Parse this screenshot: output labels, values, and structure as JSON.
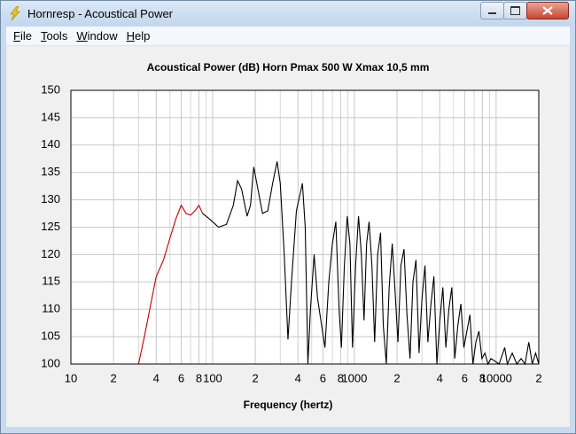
{
  "window": {
    "title": "Hornresp - Acoustical Power"
  },
  "menu": [
    "File",
    "Tools",
    "Window",
    "Help"
  ],
  "chart_data": {
    "type": "line",
    "title": "Acoustical Power (dB)   Horn   Pmax 500 W   Xmax 10,5 mm",
    "x_label": "Frequency (hertz)",
    "xscale": "log",
    "grid": true,
    "xlim": [
      10,
      20000
    ],
    "ylim": [
      100,
      150
    ],
    "yticks": [
      100,
      105,
      110,
      115,
      120,
      125,
      130,
      135,
      140,
      145,
      150
    ],
    "xticks": [
      10,
      {
        "value": 20,
        "label": "2"
      },
      {
        "value": 40,
        "label": "4"
      },
      {
        "value": 60,
        "label": "6"
      },
      {
        "value": 80,
        "label": "8"
      },
      100,
      {
        "value": 200,
        "label": "2"
      },
      {
        "value": 400,
        "label": "4"
      },
      {
        "value": 600,
        "label": "6"
      },
      {
        "value": 800,
        "label": "8"
      },
      1000,
      {
        "value": 2000,
        "label": "2"
      },
      {
        "value": 4000,
        "label": "4"
      },
      {
        "value": 6000,
        "label": "6"
      },
      {
        "value": 8000,
        "label": "8"
      },
      10000,
      {
        "value": 20000,
        "label": "2"
      }
    ],
    "x_minor_grid": [
      30,
      50,
      70,
      90,
      300,
      500,
      700,
      900,
      3000,
      5000,
      7000,
      9000
    ],
    "series": [
      {
        "color": "#c00000",
        "x": [
          30,
          33,
          36,
          40,
          45,
          50,
          55,
          60,
          65,
          70,
          75,
          80,
          85
        ],
        "values": [
          100,
          105,
          110,
          116,
          119,
          123,
          126.5,
          129,
          127.5,
          127.2,
          128,
          129,
          127.5
        ]
      },
      {
        "color": "#000000",
        "x": [
          85,
          95,
          110,
          125,
          140,
          150,
          160,
          175,
          185,
          195,
          205,
          225,
          245,
          265,
          285,
          300,
          320,
          340,
          360,
          390,
          430,
          450,
          470,
          490,
          520,
          550,
          580,
          620,
          660,
          700,
          740,
          780,
          810,
          850,
          890,
          930,
          970,
          1020,
          1070,
          1120,
          1170,
          1220,
          1270,
          1330,
          1390,
          1460,
          1530,
          1600,
          1680,
          1760,
          1850,
          1940,
          2030,
          2130,
          2240,
          2350,
          2470,
          2590,
          2720,
          2860,
          3000,
          3150,
          3300,
          3470,
          3640,
          3820,
          4010,
          4210,
          4420,
          4640,
          4870,
          5110,
          5370,
          5640,
          5920,
          6220,
          6530,
          6860,
          7200,
          7560,
          7940,
          8340,
          8760,
          9200,
          10500,
          11500,
          12000,
          13000,
          14000,
          15000,
          16000,
          17000,
          18000,
          19000,
          20000
        ],
        "values": [
          127.5,
          126.5,
          125,
          125.5,
          129,
          133.5,
          132,
          127,
          129,
          136,
          133,
          127.5,
          128,
          133,
          137,
          133,
          120,
          104.5,
          115,
          128,
          133,
          125,
          100,
          110,
          120,
          112,
          108,
          103,
          115,
          122,
          126,
          110,
          103,
          118,
          127,
          122,
          103,
          118,
          127,
          120,
          108,
          122,
          126,
          118,
          104,
          120,
          124,
          107,
          100,
          114,
          122,
          113,
          104,
          118,
          121,
          109,
          101,
          115,
          119,
          102,
          112,
          118,
          104,
          111,
          116,
          100,
          108,
          114,
          103,
          110,
          114,
          101,
          107,
          111,
          103,
          106,
          109,
          100,
          104,
          106,
          101,
          102,
          100,
          101,
          100,
          103,
          100,
          102,
          100,
          101,
          100,
          104,
          100,
          102,
          100
        ]
      }
    ]
  }
}
